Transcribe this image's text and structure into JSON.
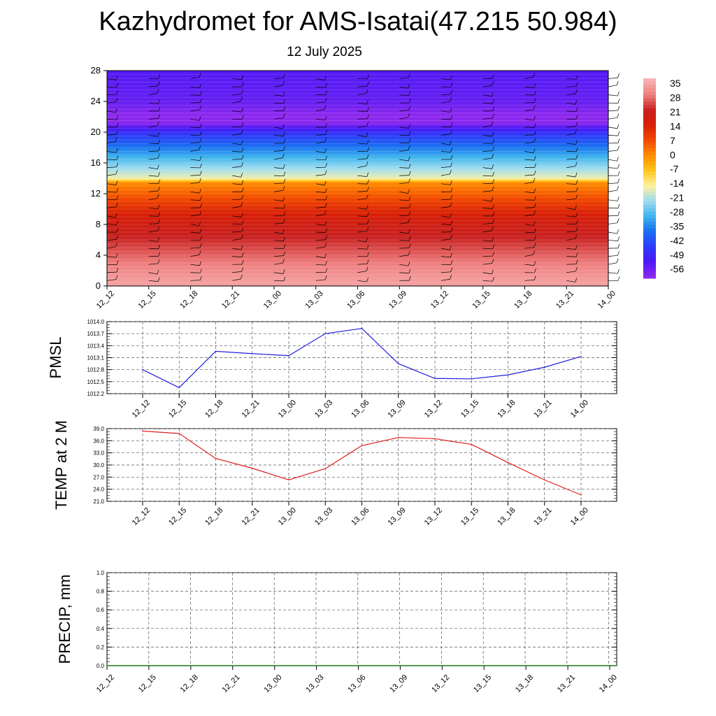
{
  "title": "Kazhydromet for AMS-Isatai(47.215 50.984)",
  "subtitle": "12 July 2025",
  "time_labels": [
    "12_12",
    "12_15",
    "12_18",
    "12_21",
    "13_00",
    "13_03",
    "13_06",
    "13_09",
    "13_12",
    "13_15",
    "13_18",
    "13_21",
    "14_00"
  ],
  "chart_data": [
    {
      "type": "heatmap",
      "name": "temperature cross-section with wind barbs",
      "x": [
        "12_12",
        "12_15",
        "12_18",
        "12_21",
        "13_00",
        "13_03",
        "13_06",
        "13_09",
        "13_12",
        "13_15",
        "13_18",
        "13_21",
        "14_00"
      ],
      "ylim": [
        0,
        28
      ],
      "yticks": [
        0,
        4,
        8,
        12,
        16,
        20,
        24,
        28
      ],
      "colorbar": {
        "labels": [
          "35",
          "28",
          "21",
          "14",
          "7",
          "0",
          "-7",
          "-14",
          "-21",
          "-28",
          "-35",
          "-42",
          "-49",
          "-56"
        ],
        "colors": [
          "#f7b3b3",
          "#ef7f7f",
          "#c8201f",
          "#d81f08",
          "#f24a00",
          "#ff8d00",
          "#ffc61c",
          "#fff2a0",
          "#9edcf0",
          "#3fb5ed",
          "#1a70f0",
          "#2e3cf8",
          "#4a18f5",
          "#8c28ee"
        ]
      },
      "temperature_profile": [
        {
          "level": 0,
          "value": 33
        },
        {
          "level": 2,
          "value": 30
        },
        {
          "level": 4,
          "value": 26
        },
        {
          "level": 6,
          "value": 22
        },
        {
          "level": 8,
          "value": 18
        },
        {
          "level": 10,
          "value": 12
        },
        {
          "level": 12,
          "value": 5
        },
        {
          "level": 13.5,
          "value": 0
        },
        {
          "level": 14,
          "value": -15
        },
        {
          "level": 16,
          "value": -24
        },
        {
          "level": 18,
          "value": -34
        },
        {
          "level": 20,
          "value": -44
        },
        {
          "level": 21.5,
          "value": -58
        },
        {
          "level": 24,
          "value": -52
        },
        {
          "level": 28,
          "value": -50
        }
      ]
    },
    {
      "type": "line",
      "ylabel": "PMSL",
      "ylim": [
        1012.2,
        1014.0
      ],
      "yticks": [
        "1012.2",
        "1012.5",
        "1012.8",
        "1013.1",
        "1013.4",
        "1013.7",
        "1014.0"
      ],
      "x": [
        "12_12",
        "12_15",
        "12_18",
        "12_21",
        "13_00",
        "13_03",
        "13_06",
        "13_09",
        "13_12",
        "13_15",
        "13_18",
        "13_21",
        "14_00"
      ],
      "series": [
        {
          "color": "#1f1fe0",
          "values": [
            1012.8,
            1012.35,
            1013.26,
            1013.2,
            1013.15,
            1013.7,
            1013.83,
            1012.95,
            1012.58,
            1012.57,
            1012.67,
            1012.86,
            1013.13
          ]
        }
      ]
    },
    {
      "type": "line",
      "ylabel": "TEMP at 2 M",
      "ylim": [
        21.0,
        39.0
      ],
      "yticks": [
        "21.0",
        "24.0",
        "27.0",
        "30.0",
        "33.0",
        "36.0",
        "39.0"
      ],
      "x": [
        "12_12",
        "12_15",
        "12_18",
        "12_21",
        "13_00",
        "13_03",
        "13_06",
        "13_09",
        "13_12",
        "13_15",
        "13_18",
        "13_21",
        "14_00"
      ],
      "series": [
        {
          "color": "#e01f1f",
          "values": [
            38.4,
            37.8,
            31.6,
            29.2,
            26.3,
            29.1,
            34.8,
            36.8,
            36.5,
            35.1,
            30.6,
            26.3,
            22.6
          ]
        }
      ]
    },
    {
      "type": "line",
      "ylabel": "PRECIP, mm",
      "ylim": [
        0.0,
        1.0
      ],
      "yticks": [
        "0.0",
        "0.2",
        "0.4",
        "0.6",
        "0.8",
        "1.0"
      ],
      "x": [
        "12_12",
        "12_15",
        "12_18",
        "12_21",
        "13_00",
        "13_03",
        "13_06",
        "13_09",
        "13_12",
        "13_15",
        "13_18",
        "13_21",
        "14_00"
      ],
      "series": [
        {
          "color": "#1a7a1a",
          "values": [
            0,
            0,
            0,
            0,
            0,
            0,
            0,
            0,
            0,
            0,
            0,
            0,
            0
          ]
        }
      ]
    }
  ]
}
